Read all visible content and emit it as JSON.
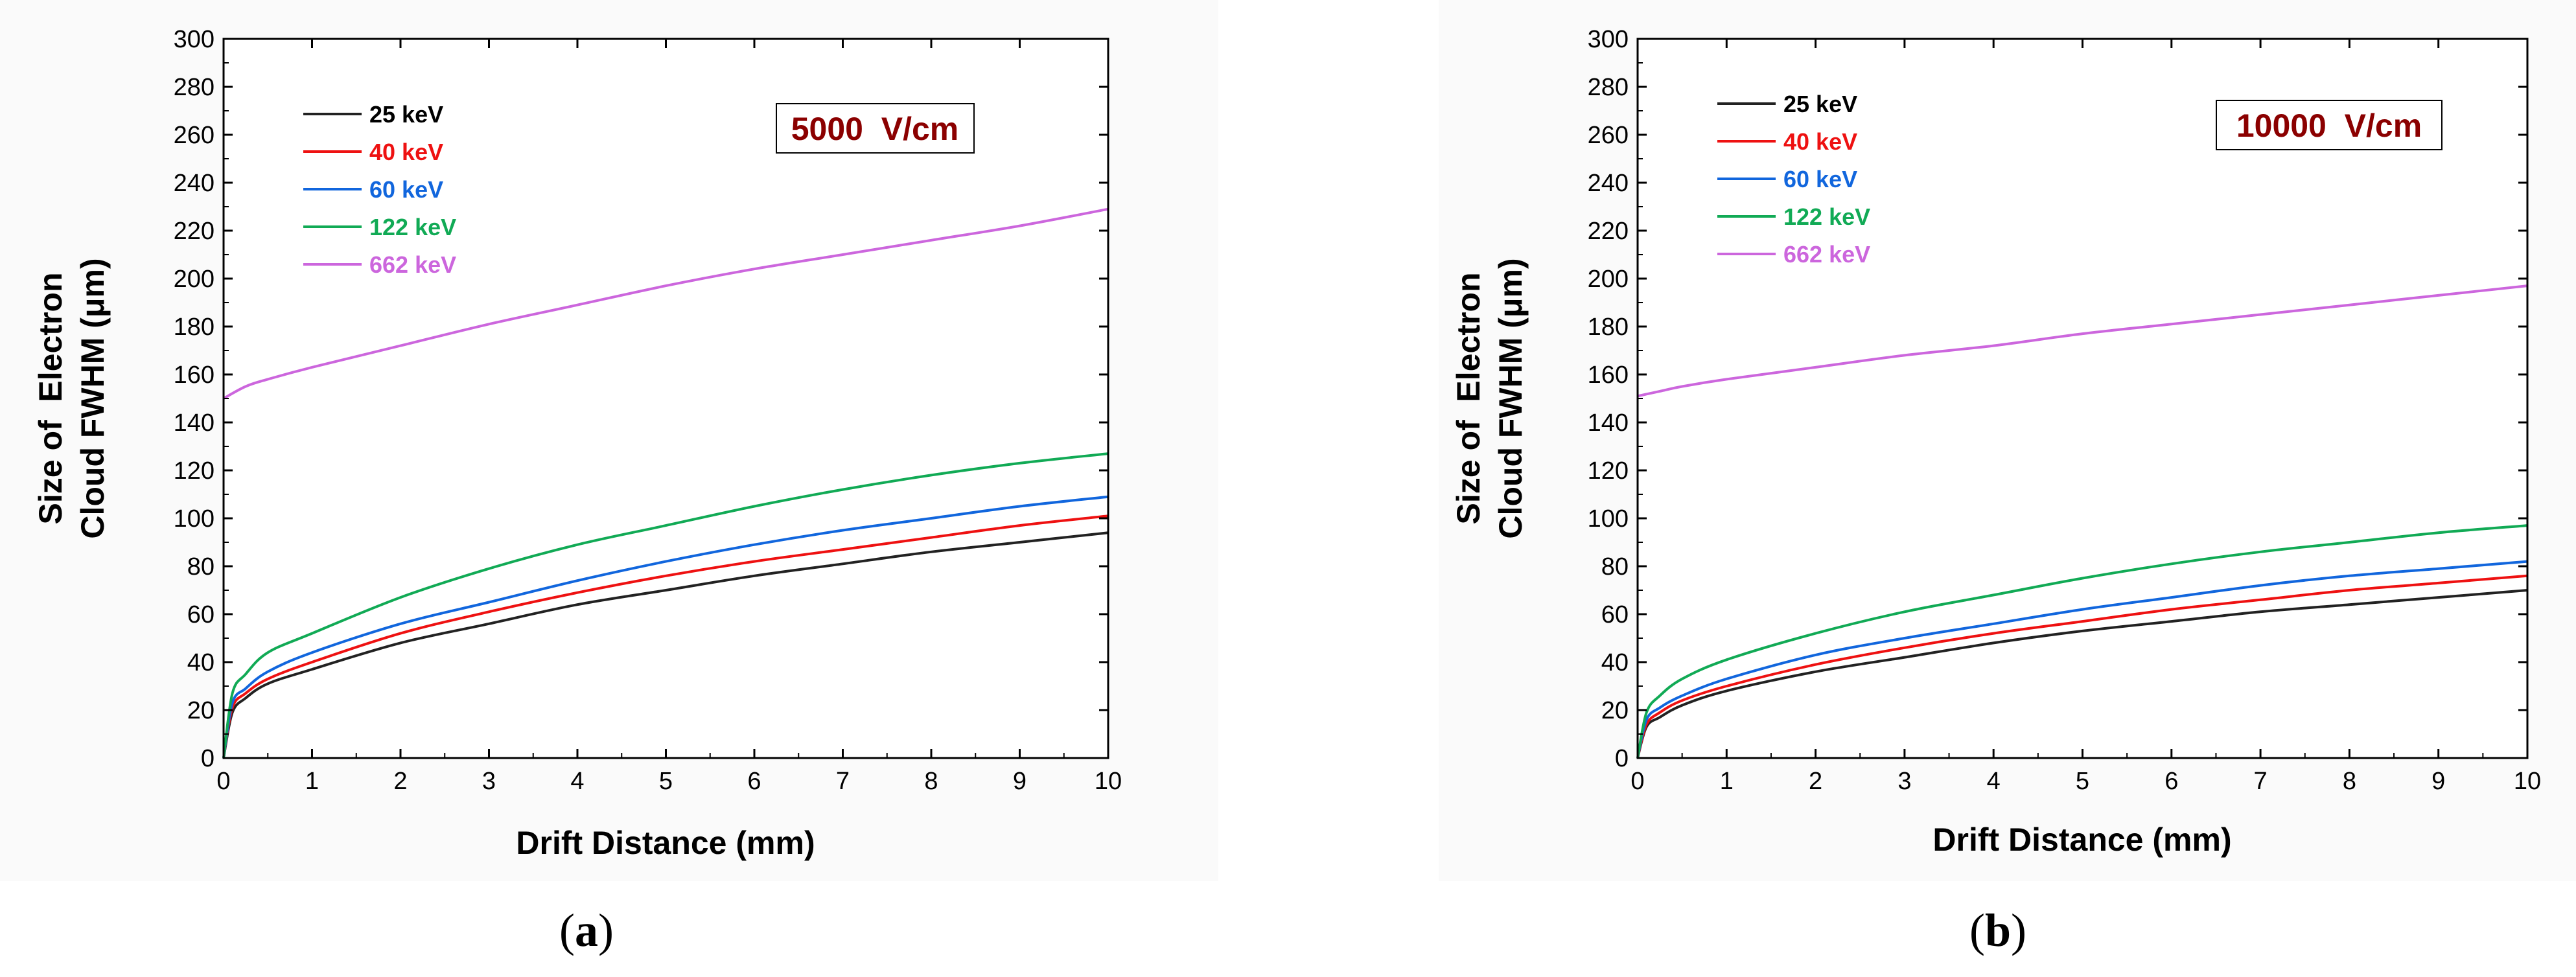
{
  "chart_data": [
    {
      "type": "line",
      "field_label": "5000  V/cm",
      "caption": {
        "prefix": "(",
        "letter": "a",
        "suffix": ")"
      },
      "xlabel": "Drift Distance (mm)",
      "ylabel_line1": "Size of  Electron",
      "ylabel_line2": "Cloud FWHM (μm)",
      "xlim": [
        0,
        10
      ],
      "ylim": [
        0,
        300
      ],
      "xticks": [
        0,
        1,
        2,
        3,
        4,
        5,
        6,
        7,
        8,
        9,
        10
      ],
      "yticks": [
        0,
        20,
        40,
        60,
        80,
        100,
        120,
        140,
        160,
        180,
        200,
        220,
        240,
        260,
        280,
        300
      ],
      "legend_position": "top-left",
      "series": [
        {
          "name": "25 keV",
          "color": "#222222",
          "label_color": "#000000",
          "x": [
            0,
            0.1,
            0.25,
            0.5,
            1,
            2,
            3,
            4,
            5,
            6,
            7,
            8,
            9,
            10
          ],
          "values": [
            0,
            19,
            25,
            31,
            37,
            48,
            56,
            64,
            70,
            76,
            81,
            86,
            90,
            94
          ]
        },
        {
          "name": "40 keV",
          "color": "#ee1111",
          "label_color": "#ee1111",
          "x": [
            0,
            0.1,
            0.25,
            0.5,
            1,
            2,
            3,
            4,
            5,
            6,
            7,
            8,
            9,
            10
          ],
          "values": [
            0,
            21,
            27,
            33,
            40,
            52,
            61,
            69,
            76,
            82,
            87,
            92,
            97,
            101
          ]
        },
        {
          "name": "60 keV",
          "color": "#1166dd",
          "label_color": "#1166dd",
          "x": [
            0,
            0.1,
            0.25,
            0.5,
            1,
            2,
            3,
            4,
            5,
            6,
            7,
            8,
            9,
            10
          ],
          "values": [
            0,
            23,
            29,
            36,
            44,
            56,
            65,
            74,
            82,
            89,
            95,
            100,
            105,
            109
          ]
        },
        {
          "name": "122 keV",
          "color": "#11aa55",
          "label_color": "#11aa55",
          "x": [
            0,
            0.1,
            0.25,
            0.5,
            1,
            2,
            3,
            4,
            5,
            6,
            7,
            8,
            9,
            10
          ],
          "values": [
            0,
            27,
            35,
            44,
            52,
            67,
            79,
            89,
            97,
            105,
            112,
            118,
            123,
            127
          ]
        },
        {
          "name": "662 keV",
          "color": "#cc66dd",
          "label_color": "#cc66dd",
          "x": [
            0,
            0.25,
            0.5,
            1,
            2,
            3,
            4,
            5,
            6,
            7,
            8,
            9,
            10
          ],
          "values": [
            150,
            155,
            158,
            163,
            172,
            181,
            189,
            197,
            204,
            210,
            216,
            222,
            229
          ]
        }
      ]
    },
    {
      "type": "line",
      "field_label": "10000  V/cm",
      "caption": {
        "prefix": "(",
        "letter": "b",
        "suffix": ")"
      },
      "xlabel": "Drift Distance (mm)",
      "ylabel_line1": "Size of  Electron",
      "ylabel_line2": "Cloud FWHM (μm)",
      "xlim": [
        0,
        10
      ],
      "ylim": [
        0,
        300
      ],
      "xticks": [
        0,
        1,
        2,
        3,
        4,
        5,
        6,
        7,
        8,
        9,
        10
      ],
      "yticks": [
        0,
        20,
        40,
        60,
        80,
        100,
        120,
        140,
        160,
        180,
        200,
        220,
        240,
        260,
        280,
        300
      ],
      "legend_position": "top-left",
      "series": [
        {
          "name": "25 keV",
          "color": "#222222",
          "label_color": "#000000",
          "x": [
            0,
            0.1,
            0.25,
            0.5,
            1,
            2,
            3,
            4,
            5,
            6,
            7,
            8,
            9,
            10
          ],
          "values": [
            0,
            13,
            17,
            22,
            28,
            36,
            42,
            48,
            53,
            57,
            61,
            64,
            67,
            70
          ]
        },
        {
          "name": "40 keV",
          "color": "#ee1111",
          "label_color": "#ee1111",
          "x": [
            0,
            0.1,
            0.25,
            0.5,
            1,
            2,
            3,
            4,
            5,
            6,
            7,
            8,
            9,
            10
          ],
          "values": [
            0,
            14,
            19,
            24,
            30,
            39,
            46,
            52,
            57,
            62,
            66,
            70,
            73,
            76
          ]
        },
        {
          "name": "60 keV",
          "color": "#1166dd",
          "label_color": "#1166dd",
          "x": [
            0,
            0.1,
            0.25,
            0.5,
            1,
            2,
            3,
            4,
            5,
            6,
            7,
            8,
            9,
            10
          ],
          "values": [
            0,
            16,
            21,
            26,
            33,
            43,
            50,
            56,
            62,
            67,
            72,
            76,
            79,
            82
          ]
        },
        {
          "name": "122 keV",
          "color": "#11aa55",
          "label_color": "#11aa55",
          "x": [
            0,
            0.1,
            0.25,
            0.5,
            1,
            2,
            3,
            4,
            5,
            6,
            7,
            8,
            9,
            10
          ],
          "values": [
            0,
            19,
            26,
            33,
            41,
            52,
            61,
            68,
            75,
            81,
            86,
            90,
            94,
            97
          ]
        },
        {
          "name": "662 keV",
          "color": "#cc66dd",
          "label_color": "#cc66dd",
          "x": [
            0,
            0.25,
            0.5,
            1,
            2,
            3,
            4,
            5,
            6,
            7,
            8,
            9,
            10
          ],
          "values": [
            151,
            153,
            155,
            158,
            163,
            168,
            172,
            177,
            181,
            185,
            189,
            193,
            197
          ]
        }
      ]
    }
  ]
}
